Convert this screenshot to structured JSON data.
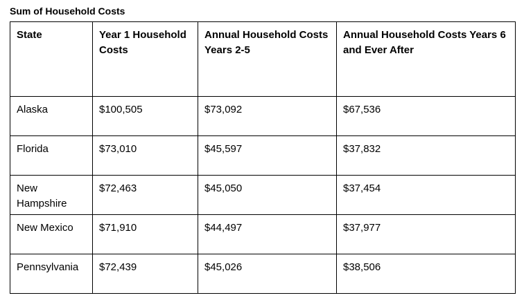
{
  "title": "Sum of Household Costs",
  "table": {
    "columns": [
      "State",
      "Year 1 Household Costs",
      "Annual Household Costs Years 2-5",
      "Annual Household Costs Years 6 and Ever After"
    ],
    "rows": [
      [
        "Alaska",
        "$100,505",
        "$73,092",
        "$67,536"
      ],
      [
        "Florida",
        "$73,010",
        "$45,597",
        "$37,832"
      ],
      [
        "New Hampshire",
        "$72,463",
        "$45,050",
        "$37,454"
      ],
      [
        "New Mexico",
        "$71,910",
        "$44,497",
        "$37,977"
      ],
      [
        "Pennsylvania",
        "$72,439",
        "$45,026",
        "$38,506"
      ]
    ],
    "colors": {
      "border": "#000000",
      "text": "#000000",
      "background": "#ffffff"
    }
  }
}
